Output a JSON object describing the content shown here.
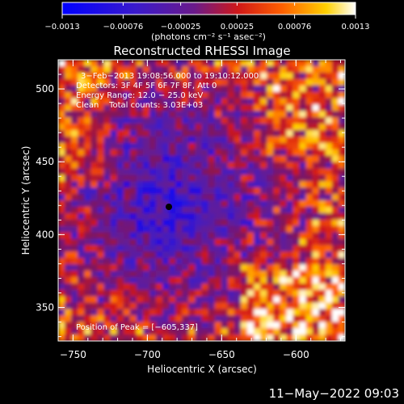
{
  "chart_data": {
    "type": "heatmap",
    "title": "Reconstructed RHESSI Image",
    "xlabel": "Heliocentric X (arcsec)",
    "ylabel": "Heliocentric Y (arcsec)",
    "xlim": [
      -760,
      -567
    ],
    "ylim": [
      327,
      520
    ],
    "x_ticks": [
      -750,
      -700,
      -650,
      -600
    ],
    "y_ticks": [
      350,
      400,
      450,
      500
    ],
    "x_tick_labels": [
      "−750",
      "−700",
      "−650",
      "−600"
    ],
    "y_tick_labels": [
      "350",
      "400",
      "450",
      "500"
    ],
    "colorbar": {
      "range": [
        -0.0013,
        0.0013
      ],
      "tick_values": [
        -0.0013,
        -0.00076,
        -0.00025,
        0.00025,
        0.00076,
        0.0013
      ],
      "tick_labels": [
        "−0.0013",
        "−0.00076",
        "−0.00025",
        "0.00025",
        "0.00076",
        "0.0013"
      ],
      "unit_label": "(photons cm⁻² s⁻¹ asec⁻²)"
    },
    "annotations": [
      "3−Feb−2013 19:08:56.000 to 19:10:12.000",
      "Detectors: 3F 4F 5F 6F 7F 8F, Att 0",
      "Energy Range: 12.0 − 25.0 keV",
      "Clean    Total counts: 3.03E+03"
    ],
    "peak_label": "Position of Peak = [−605,337]",
    "peak_position": [
      -605,
      337
    ],
    "colors": {
      "low": "#0000ff",
      "mid": "#5a2a9a",
      "high": "#ffffff"
    }
  },
  "footer": {
    "timestamp": "11−May−2022 09:03"
  }
}
